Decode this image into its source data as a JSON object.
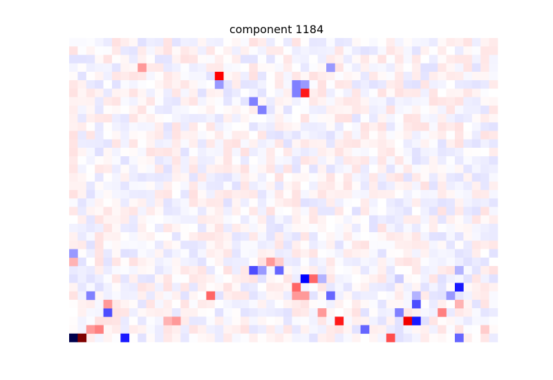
{
  "chart_data": {
    "type": "heatmap",
    "title": "component 1184",
    "rows": 36,
    "cols": 50,
    "colormap": "seismic",
    "vmin": -1,
    "vmax": 1,
    "axes_visible": false,
    "grid": false,
    "cells": [
      [
        35,
        0,
        -1.0
      ],
      [
        35,
        1,
        1.0
      ],
      [
        35,
        6,
        -0.45
      ],
      [
        35,
        37,
        0.35
      ],
      [
        35,
        45,
        -0.3
      ],
      [
        34,
        34,
        -0.3
      ],
      [
        33,
        31,
        0.45
      ],
      [
        33,
        39,
        0.55
      ],
      [
        33,
        40,
        -0.45
      ],
      [
        32,
        4,
        -0.35
      ],
      [
        32,
        29,
        0.2
      ],
      [
        32,
        38,
        -0.25
      ],
      [
        32,
        43,
        0.25
      ],
      [
        31,
        4,
        0.2
      ],
      [
        31,
        40,
        -0.35
      ],
      [
        31,
        45,
        0.15
      ],
      [
        30,
        2,
        -0.25
      ],
      [
        30,
        16,
        0.3
      ],
      [
        30,
        26,
        0.2
      ],
      [
        30,
        27,
        0.2
      ],
      [
        30,
        30,
        -0.3
      ],
      [
        30,
        40,
        -0.15
      ],
      [
        30,
        44,
        -0.2
      ],
      [
        29,
        45,
        -0.45
      ],
      [
        29,
        26,
        0.3
      ],
      [
        28,
        27,
        -0.5
      ],
      [
        28,
        28,
        0.3
      ],
      [
        28,
        29,
        -0.15
      ],
      [
        28,
        38,
        -0.1
      ],
      [
        27,
        21,
        -0.35
      ],
      [
        27,
        22,
        -0.2
      ],
      [
        27,
        24,
        -0.3
      ],
      [
        27,
        45,
        -0.15
      ],
      [
        26,
        23,
        0.2
      ],
      [
        26,
        24,
        0.1
      ],
      [
        26,
        0,
        0.15
      ],
      [
        25,
        0,
        -0.2
      ],
      [
        34,
        2,
        0.2
      ],
      [
        34,
        3,
        0.25
      ],
      [
        34,
        48,
        0.1
      ],
      [
        33,
        11,
        0.15
      ],
      [
        33,
        12,
        0.2
      ],
      [
        3,
        8,
        0.2
      ],
      [
        3,
        30,
        -0.2
      ],
      [
        4,
        17,
        0.5
      ],
      [
        5,
        17,
        -0.2
      ],
      [
        5,
        26,
        -0.25
      ],
      [
        5,
        27,
        -0.2
      ],
      [
        6,
        27,
        0.45
      ],
      [
        6,
        26,
        -0.25
      ],
      [
        7,
        21,
        -0.25
      ],
      [
        8,
        22,
        -0.25
      ]
    ]
  }
}
